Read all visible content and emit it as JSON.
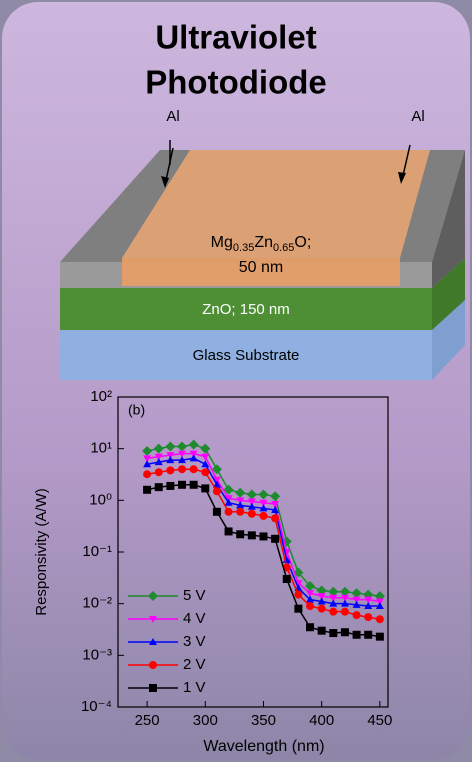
{
  "header": {
    "title_line1": "Ultraviolet",
    "title_line2": "Photodiode"
  },
  "diagram": {
    "al_left": "Al",
    "al_right": "Al",
    "mg": "Mg",
    "mg_sub": "0.35",
    "zn": "Zn",
    "zn_sub": "0.65",
    "o": "O;",
    "mgzno_thickness": "50 nm",
    "zno": "ZnO; 150 nm",
    "substrate": "Glass Substrate"
  },
  "chart_data": {
    "type": "line",
    "annotation": "(b)",
    "x_label": "Wavelength (nm)",
    "y_label": "Responsivity (A/W)",
    "x": [
      250,
      260,
      270,
      280,
      290,
      300,
      310,
      320,
      330,
      340,
      350,
      360,
      370,
      380,
      390,
      400,
      410,
      420,
      430,
      440,
      450
    ],
    "xlim": [
      225,
      457
    ],
    "xticks": [
      250,
      300,
      350,
      400,
      450
    ],
    "ylim": [
      0.0001,
      100
    ],
    "y_scale": "log",
    "yticks": [
      {
        "value": 0.0001,
        "label": "10⁻⁴"
      },
      {
        "value": 0.001,
        "label": "10⁻³"
      },
      {
        "value": 0.01,
        "label": "10⁻²"
      },
      {
        "value": 0.1,
        "label": "10⁻¹"
      },
      {
        "value": 1,
        "label": "10⁰"
      },
      {
        "value": 10,
        "label": "10¹"
      },
      {
        "value": 100,
        "label": "10²"
      }
    ],
    "legend": "lower left",
    "series": [
      {
        "name": "5 V",
        "color": "#1e8b2e",
        "marker": "diamond",
        "values": [
          9,
          10,
          11,
          11,
          12,
          10,
          4,
          1.6,
          1.4,
          1.3,
          1.3,
          1.2,
          0.16,
          0.04,
          0.022,
          0.018,
          0.017,
          0.017,
          0.016,
          0.015,
          0.014
        ]
      },
      {
        "name": "4 V",
        "color": "#ff00ff",
        "marker": "triangle-down",
        "values": [
          6.5,
          7,
          7.5,
          8,
          8,
          7,
          2.5,
          1.1,
          1.0,
          0.95,
          0.9,
          0.85,
          0.1,
          0.025,
          0.016,
          0.014,
          0.013,
          0.013,
          0.012,
          0.012,
          0.011
        ]
      },
      {
        "name": "3 V",
        "color": "#0000ff",
        "marker": "triangle-up",
        "values": [
          5,
          5.5,
          6,
          6,
          6.5,
          5,
          2,
          0.9,
          0.8,
          0.75,
          0.7,
          0.65,
          0.07,
          0.02,
          0.012,
          0.011,
          0.01,
          0.01,
          0.0095,
          0.009,
          0.009
        ]
      },
      {
        "name": "2 V",
        "color": "#ff0000",
        "marker": "circle",
        "values": [
          3.2,
          3.5,
          3.8,
          4,
          4,
          3.5,
          1.5,
          0.6,
          0.6,
          0.55,
          0.5,
          0.45,
          0.05,
          0.015,
          0.009,
          0.008,
          0.007,
          0.007,
          0.006,
          0.0055,
          0.005
        ]
      },
      {
        "name": "1 V",
        "color": "#000000",
        "marker": "square",
        "values": [
          1.6,
          1.8,
          1.9,
          2,
          2,
          1.7,
          0.6,
          0.25,
          0.22,
          0.21,
          0.2,
          0.18,
          0.03,
          0.008,
          0.0035,
          0.003,
          0.0027,
          0.0028,
          0.0025,
          0.0025,
          0.0023
        ]
      }
    ]
  }
}
